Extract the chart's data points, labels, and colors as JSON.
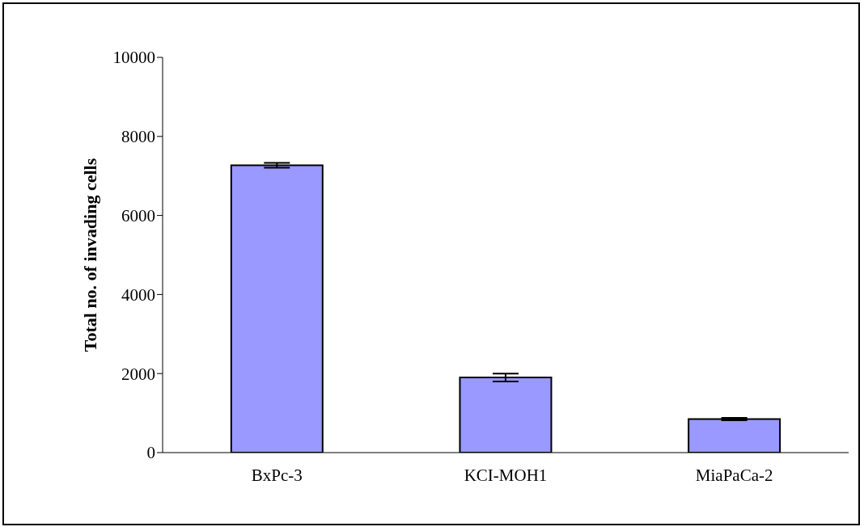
{
  "chart_data": {
    "type": "bar",
    "ylabel": "Total no. of invading cells",
    "categories": [
      "BxPc-3",
      "KCI-MOH1",
      "MiaPaCa-2"
    ],
    "values": [
      7270,
      1900,
      850
    ],
    "errors": [
      60,
      100,
      30
    ],
    "color": "#9999ff",
    "ylim": [
      0,
      10000
    ],
    "yticks": [
      0,
      2000,
      4000,
      6000,
      8000,
      10000
    ],
    "grid": false,
    "legend": false
  }
}
